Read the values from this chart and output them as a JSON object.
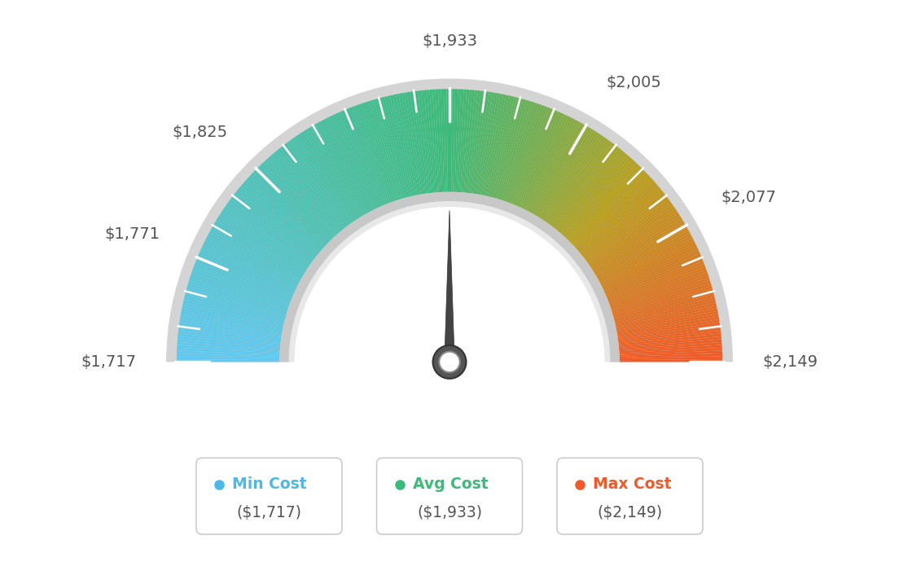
{
  "min_val": 1717,
  "avg_val": 1933,
  "max_val": 2149,
  "tick_labels": [
    "$1,717",
    "$1,771",
    "$1,825",
    "$1,933",
    "$2,005",
    "$2,077",
    "$2,149"
  ],
  "tick_values": [
    1717,
    1771,
    1825,
    1933,
    2005,
    2077,
    2149
  ],
  "legend": [
    {
      "label": "Min Cost",
      "value": "($1,717)",
      "color": "#4db8e8"
    },
    {
      "label": "Avg Cost",
      "value": "($1,933)",
      "color": "#3dba7a"
    },
    {
      "label": "Max Cost",
      "value": "($2,149)",
      "color": "#f05a28"
    }
  ],
  "background_color": "#ffffff",
  "color_left_start": "#62c8f0",
  "color_left_end": "#3dba7a",
  "color_right_start": "#3dba7a",
  "color_right_mid": "#b8a020",
  "color_right_end": "#f05a28",
  "outer_rim_color": "#d4d4d4",
  "inner_rim_color_dark": "#c8c8c8",
  "inner_rim_color_light": "#e8e8e8",
  "needle_color": "#444444",
  "hub_outer_color": "#555555",
  "hub_inner_color": "#ffffff",
  "label_color": "#555555"
}
